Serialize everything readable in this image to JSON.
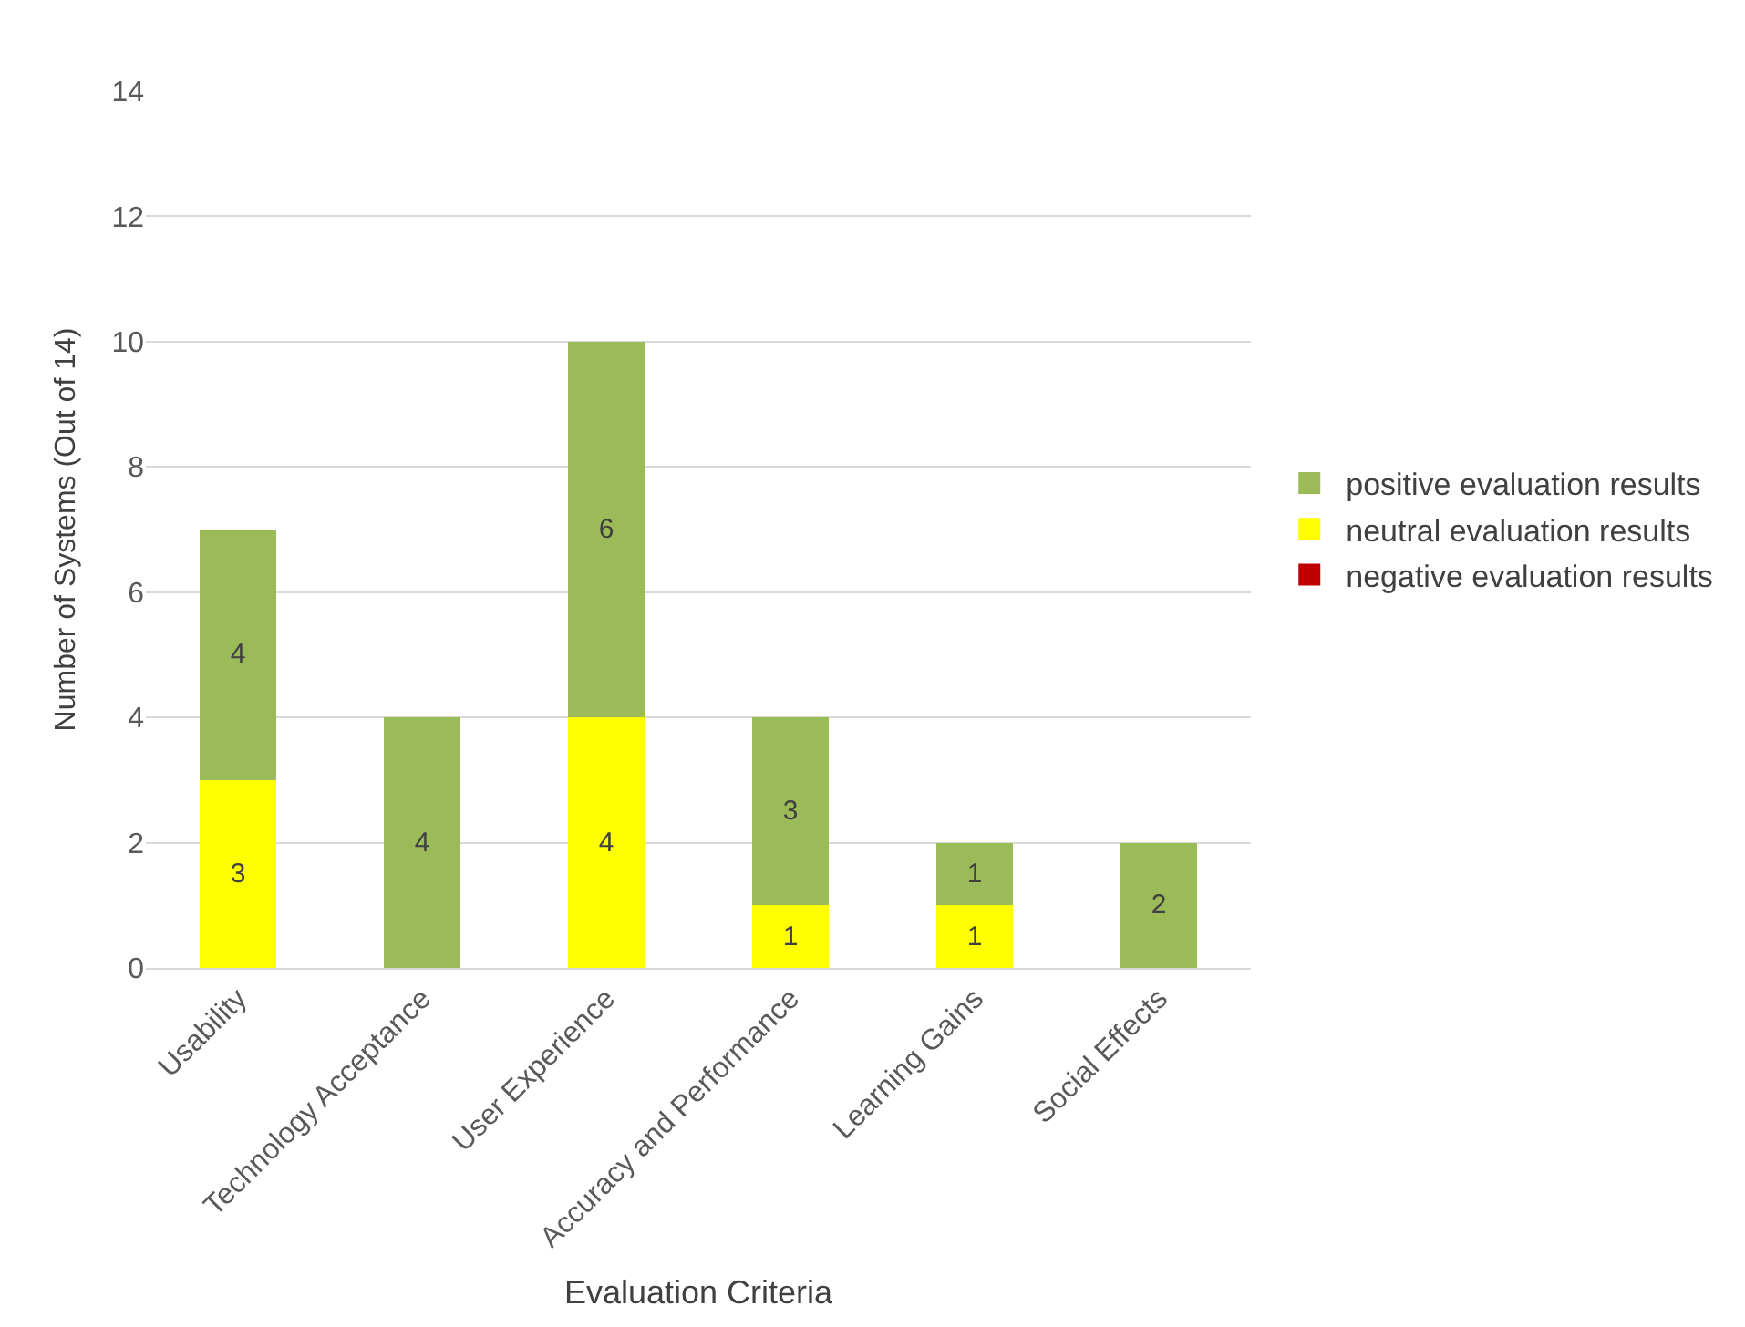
{
  "chart_data": {
    "type": "bar",
    "stacked": true,
    "xlabel": "Evaluation Criteria",
    "ylabel": "Number of Systems (Out of 14)",
    "categories": [
      "Usability",
      "Technology Acceptance",
      "User Experience",
      "Accuracy and Performance",
      "Learning Gains",
      "Social Effects"
    ],
    "series": [
      {
        "name": "negative evaluation results",
        "color": "#c00000",
        "values": [
          0,
          0,
          0,
          0,
          0,
          0
        ],
        "value_labels": [
          null,
          null,
          null,
          null,
          null,
          null
        ]
      },
      {
        "name": "neutral evaluation results",
        "color": "#ffff00",
        "values": [
          3,
          0,
          4,
          1,
          1,
          0
        ],
        "value_labels": [
          "3",
          null,
          "4",
          "1",
          "1",
          null
        ]
      },
      {
        "name": "positive evaluation results",
        "color": "#9bbb59",
        "values": [
          4,
          4,
          6,
          3,
          1,
          2
        ],
        "value_labels": [
          "4",
          "4",
          "6",
          "3",
          "1",
          "2"
        ]
      }
    ],
    "ylim": [
      0,
      14
    ],
    "yticks": [
      0,
      2,
      4,
      6,
      8,
      10,
      12,
      14
    ],
    "grid": "y",
    "legend": "right"
  }
}
